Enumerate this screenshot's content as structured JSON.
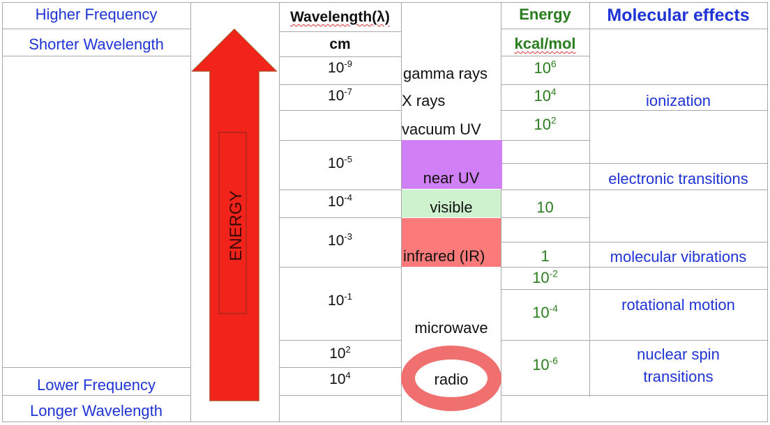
{
  "left": {
    "top_line1": "Higher Frequency",
    "top_line2": "Shorter Wavelength",
    "bottom_line1": "Lower Frequency",
    "bottom_line2": "Longer Wavelength"
  },
  "arrow": {
    "label": "ENERGY",
    "color": "#f2231a"
  },
  "wavelength": {
    "header": "Wavelength(λ)",
    "unit": "cm",
    "values": [
      {
        "base": "10",
        "exp": "-9"
      },
      {
        "base": "10",
        "exp": "-7"
      },
      {
        "base": "10",
        "exp": "-5"
      },
      {
        "base": "10",
        "exp": "-4"
      },
      {
        "base": "10",
        "exp": "-3"
      },
      {
        "base": "10",
        "exp": "-1"
      },
      {
        "base": "10",
        "exp": "2"
      },
      {
        "base": "10",
        "exp": "4"
      }
    ]
  },
  "regions": {
    "gamma": "gamma rays",
    "xrays": "X rays",
    "vacuum_uv": "vacuum UV",
    "near_uv": "near UV",
    "visible": "visible",
    "infrared": "infrared (IR)",
    "microwave": "microwave",
    "radio": "radio"
  },
  "region_colors": {
    "near_uv": "#d07ff5",
    "visible": "#cdf2cd",
    "infrared": "#fd7a7a",
    "radio_ring": "#f07070"
  },
  "energy": {
    "header": "Energy",
    "unit": "kcal/mol",
    "values": [
      {
        "base": "10",
        "exp": "6"
      },
      {
        "base": "10",
        "exp": "4"
      },
      {
        "base": "10",
        "exp": "2"
      },
      {
        "base": "10",
        "exp": ""
      },
      {
        "base": "1",
        "exp": ""
      },
      {
        "base": "10",
        "exp": "-2"
      },
      {
        "base": "10",
        "exp": "-4"
      },
      {
        "base": "10",
        "exp": "-6"
      }
    ]
  },
  "effects": {
    "header": "Molecular effects",
    "ionization": "ionization",
    "electronic": "electronic transitions",
    "vibrations": "molecular vibrations",
    "rotational": "rotational motion",
    "nuclear_line1": "nuclear spin",
    "nuclear_line2": "transitions"
  }
}
